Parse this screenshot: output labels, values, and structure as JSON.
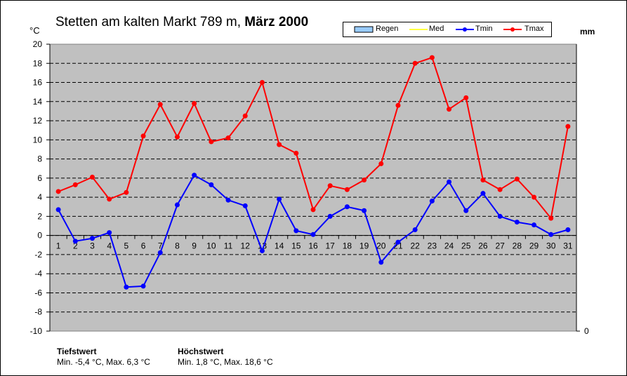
{
  "title": {
    "station": "Stetten am kalten Markt 789 m,",
    "period": "März 2000"
  },
  "axes": {
    "left_unit": "°C",
    "right_unit": "mm",
    "right_tick": "0"
  },
  "colors": {
    "plot_bg": "#c0c0c0",
    "tmin": "#0000ff",
    "tmax": "#ff0000",
    "med": "#ffff00",
    "regen": "#99ccff"
  },
  "legend": [
    {
      "name": "Regen",
      "style": "bar"
    },
    {
      "name": "Med",
      "style": "line"
    },
    {
      "name": "Tmin",
      "style": "line-marker"
    },
    {
      "name": "Tmax",
      "style": "line-marker"
    }
  ],
  "stats": {
    "tief": {
      "label": "Tiefstwert",
      "text": "Min. -5,4 °C, Max. 6,3 °C"
    },
    "hoch": {
      "label": "Höchstwert",
      "text": "Min. 1,8 °C, Max. 18,6 °C"
    }
  },
  "chart_data": {
    "type": "line",
    "title": "Stetten am kalten Markt 789 m, März 2000",
    "ylabel": "°C",
    "y2label": "mm",
    "ylim": [
      -10,
      20
    ],
    "yticks": [
      -10,
      -8,
      -6,
      -4,
      -2,
      0,
      2,
      4,
      6,
      8,
      10,
      12,
      14,
      16,
      18,
      20
    ],
    "grid": true,
    "legend_position": "top-right",
    "x": [
      1,
      2,
      3,
      4,
      5,
      6,
      7,
      8,
      9,
      10,
      11,
      12,
      13,
      14,
      15,
      16,
      17,
      18,
      19,
      20,
      21,
      22,
      23,
      24,
      25,
      26,
      27,
      28,
      29,
      30,
      31
    ],
    "series": [
      {
        "name": "Tmin",
        "color": "#0000ff",
        "values": [
          2.7,
          -0.6,
          -0.3,
          0.3,
          -5.4,
          -5.3,
          -1.8,
          3.2,
          6.3,
          5.3,
          3.7,
          3.1,
          -1.6,
          3.8,
          0.5,
          0.1,
          2.0,
          3.0,
          2.6,
          -2.8,
          -0.7,
          0.6,
          3.6,
          5.6,
          2.6,
          4.4,
          2.0,
          1.4,
          1.1,
          0.1,
          0.6
        ]
      },
      {
        "name": "Tmax",
        "color": "#ff0000",
        "values": [
          4.6,
          5.3,
          6.1,
          3.8,
          4.5,
          10.4,
          13.7,
          10.3,
          13.8,
          9.8,
          10.2,
          12.5,
          16.0,
          9.5,
          8.6,
          2.7,
          5.2,
          4.8,
          5.8,
          7.5,
          13.6,
          18.0,
          18.6,
          13.2,
          14.4,
          5.8,
          4.8,
          5.9,
          4.0,
          1.8,
          11.4
        ]
      }
    ]
  }
}
